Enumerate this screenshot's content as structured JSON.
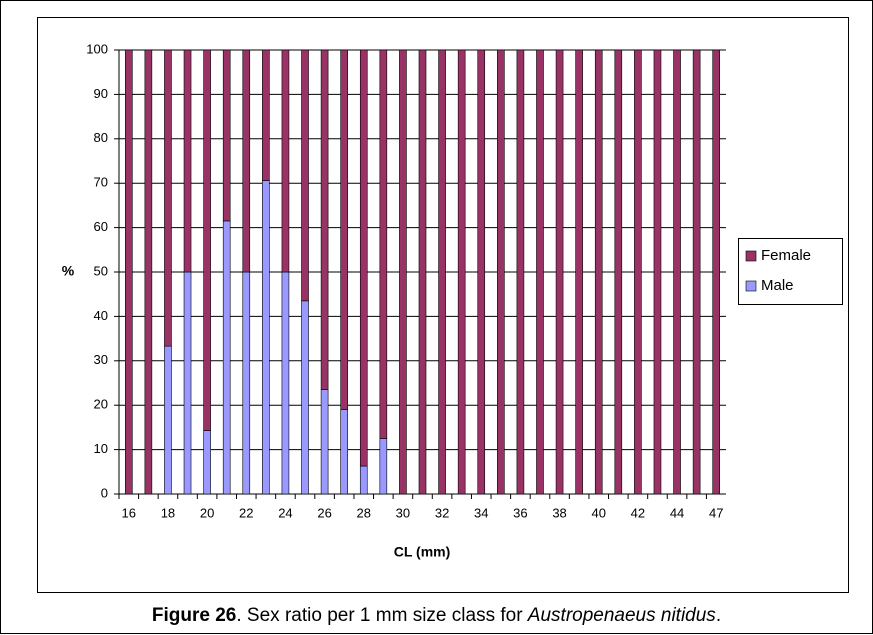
{
  "chart_data": {
    "type": "stacked_bar",
    "categories": [
      "16",
      null,
      "18",
      null,
      "20",
      null,
      "22",
      null,
      "24",
      null,
      "26",
      null,
      "28",
      null,
      "30",
      null,
      "32",
      null,
      "34",
      null,
      "36",
      null,
      "38",
      null,
      "40",
      null,
      "42",
      null,
      "44",
      null,
      "47"
    ],
    "series": [
      {
        "name": "Male",
        "color": "#9999ff",
        "values": [
          0,
          0,
          33.3,
          50,
          14.3,
          61.5,
          50,
          70.6,
          50,
          43.5,
          23.5,
          19,
          6.3,
          12.5,
          0,
          0,
          0,
          0,
          0,
          0,
          0,
          0,
          0,
          0,
          0,
          0,
          0,
          0,
          0,
          0,
          0
        ]
      },
      {
        "name": "Female",
        "color": "#993366",
        "values": [
          100,
          100,
          66.7,
          50,
          85.7,
          38.5,
          50,
          29.4,
          50,
          56.5,
          76.5,
          81,
          93.7,
          87.5,
          100,
          100,
          100,
          100,
          100,
          100,
          100,
          100,
          100,
          100,
          100,
          100,
          100,
          100,
          100,
          100,
          100
        ]
      }
    ],
    "x_label": "CL (mm)",
    "y_label": "%",
    "ylim": [
      0,
      100
    ],
    "yticks": [
      0,
      10,
      20,
      30,
      40,
      50,
      60,
      70,
      80,
      90,
      100
    ],
    "grid": true,
    "legend": "right"
  },
  "caption": {
    "label": "Figure 26",
    "text": ". Sex ratio per 1 mm size class for ",
    "species": "Austropenaeus nitidus",
    "end": "."
  }
}
